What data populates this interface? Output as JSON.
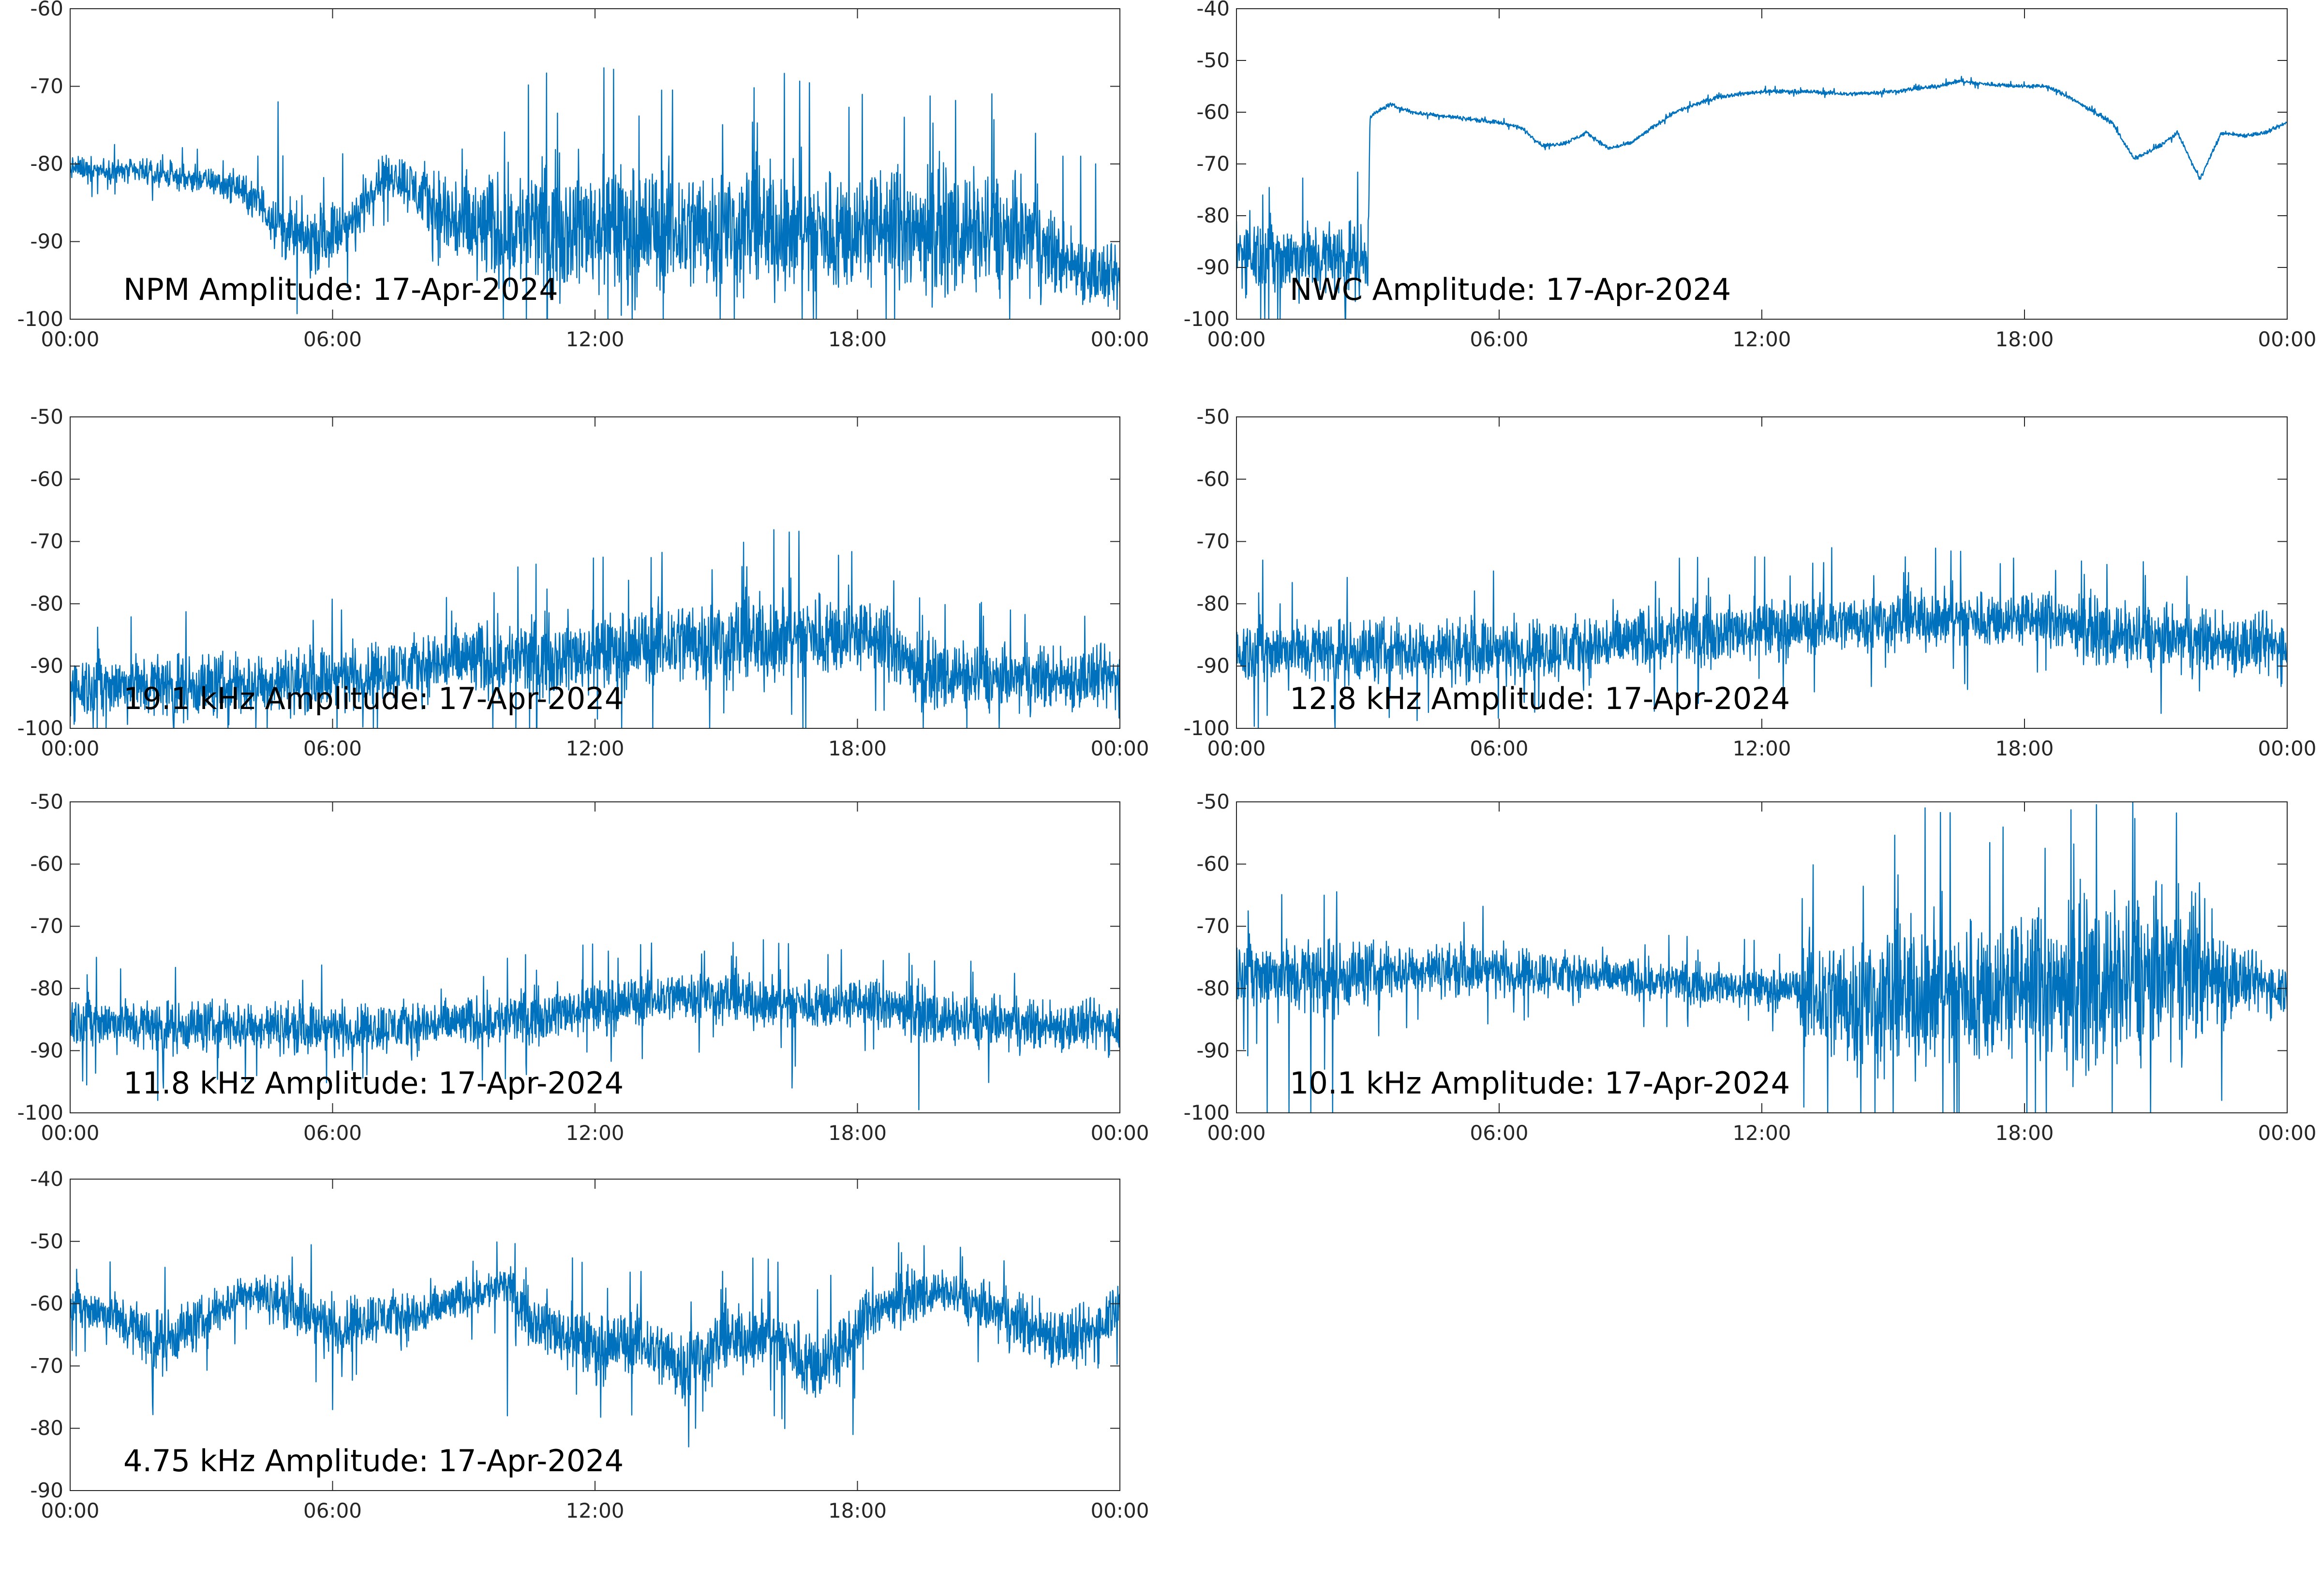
{
  "figure": {
    "line_color": "#0072BD",
    "axis_color": "#262626",
    "background": "#ffffff"
  },
  "chart_data": [
    {
      "type": "line",
      "title": "NPM Amplitude: 17-Apr-2024",
      "xlim": [
        "00:00",
        "24:00"
      ],
      "ylim": [
        -100,
        -60
      ],
      "x_ticks": [
        "00:00",
        "06:00",
        "12:00",
        "18:00",
        "00:00"
      ],
      "y_ticks": [
        -60,
        -70,
        -80,
        -90,
        -100
      ],
      "grid": false,
      "series": [
        {
          "x_hours": [
            0,
            1,
            2,
            3,
            3.8,
            4.5,
            5,
            5.5,
            6,
            6.5,
            7,
            7.5,
            8,
            8.5,
            9,
            10,
            11,
            12,
            13,
            14,
            15,
            16,
            17,
            18,
            19,
            20,
            21,
            22,
            22.5,
            23,
            23.5,
            24
          ],
          "center": [
            -80.5,
            -80.8,
            -81.3,
            -82,
            -83,
            -86,
            -89,
            -90,
            -89,
            -87.5,
            -82,
            -81.5,
            -84,
            -86.5,
            -88,
            -88.5,
            -88,
            -88,
            -88.5,
            -88.5,
            -88,
            -88.5,
            -89,
            -88.5,
            -88.5,
            -88.5,
            -89,
            -89.5,
            -92,
            -93,
            -94.5,
            -95
          ],
          "spread": [
            1.5,
            1.5,
            1.5,
            1.5,
            2,
            3,
            4,
            4,
            4,
            3.5,
            3,
            3,
            4,
            6,
            7,
            7,
            8,
            8,
            8,
            8,
            8,
            8,
            8,
            8,
            8,
            7.5,
            7.5,
            7,
            5,
            4.5,
            4,
            4
          ],
          "spikes": [
            [
              4.75,
              -72
            ],
            [
              22.7,
              -79
            ],
            [
              23.1,
              -79
            ],
            [
              23.45,
              -80
            ],
            [
              12.6,
              -99.5
            ],
            [
              9.3,
              -95
            ]
          ]
        }
      ]
    },
    {
      "type": "line",
      "title": "NWC Amplitude: 17-Apr-2024",
      "xlim": [
        "00:00",
        "24:00"
      ],
      "ylim": [
        -100,
        -40
      ],
      "x_ticks": [
        "00:00",
        "06:00",
        "12:00",
        "18:00",
        "00:00"
      ],
      "y_ticks": [
        -40,
        -50,
        -60,
        -70,
        -80,
        -90,
        -100
      ],
      "grid": false,
      "series": [
        {
          "x_hours": [
            0,
            0.5,
            1,
            2,
            3,
            3.05,
            3.2,
            3.5,
            4,
            5,
            6,
            6.5,
            7,
            7.5,
            8,
            8.5,
            9,
            10,
            11,
            12,
            13,
            14,
            15,
            16,
            16.5,
            17,
            18,
            18.5,
            19,
            20,
            20.5,
            21,
            21.5,
            22,
            22.5,
            23,
            23.5,
            24
          ],
          "center": [
            -87,
            -87,
            -88,
            -88,
            -88,
            -61,
            -60,
            -58.5,
            -60,
            -61,
            -62,
            -63,
            -66.5,
            -66,
            -64,
            -67,
            -66,
            -60,
            -57,
            -56,
            -56,
            -56.5,
            -56,
            -55,
            -54,
            -54.5,
            -55,
            -55,
            -57,
            -62,
            -69,
            -67,
            -64,
            -73,
            -64,
            -64.5,
            -64,
            -62
          ],
          "spread": [
            7,
            7,
            7,
            7,
            7,
            0.4,
            0.4,
            0.4,
            0.4,
            0.4,
            0.4,
            0.4,
            0.4,
            0.4,
            0.4,
            0.4,
            0.4,
            0.4,
            0.4,
            0.4,
            0.4,
            0.4,
            0.4,
            0.4,
            0.4,
            0.4,
            0.4,
            0.4,
            0.4,
            0.4,
            0.4,
            0.4,
            0.4,
            0.4,
            0.4,
            0.4,
            0.4,
            0.4
          ],
          "spikes": [
            [
              0.6,
              -76
            ],
            [
              0.3,
              -79
            ],
            [
              0.55,
              -100
            ],
            [
              1.0,
              -100
            ]
          ]
        }
      ]
    },
    {
      "type": "line",
      "title": "19.1 kHz Amplitude: 17-Apr-2024",
      "xlim": [
        "00:00",
        "24:00"
      ],
      "ylim": [
        -100,
        -50
      ],
      "x_ticks": [
        "00:00",
        "06:00",
        "12:00",
        "18:00",
        "00:00"
      ],
      "y_ticks": [
        -50,
        -60,
        -70,
        -80,
        -90,
        -100
      ],
      "grid": false,
      "series": [
        {
          "x_hours": [
            0,
            2,
            4,
            6,
            8,
            9,
            10,
            12,
            13,
            14,
            15,
            16,
            17,
            18,
            18.8,
            19.5,
            21,
            22,
            24
          ],
          "center": [
            -93,
            -93,
            -93,
            -92,
            -90,
            -89,
            -89,
            -88,
            -87,
            -86,
            -86,
            -86,
            -85,
            -85,
            -87,
            -91,
            -92,
            -92,
            -92
          ],
          "spread": [
            5,
            5,
            5,
            5,
            5,
            6,
            6,
            6,
            6,
            7,
            7,
            7,
            7,
            6,
            6,
            5,
            5,
            5,
            5
          ],
          "spikes": [
            [
              8.6,
              -79
            ],
            [
              6.2,
              -81
            ],
            [
              16.3,
              -78
            ],
            [
              17.8,
              -77
            ],
            [
              20.8,
              -80
            ],
            [
              21.5,
              -81
            ],
            [
              23.2,
              -82
            ],
            [
              19.5,
              -100
            ],
            [
              20.5,
              -100
            ],
            [
              10.5,
              -100
            ]
          ]
        }
      ]
    },
    {
      "type": "line",
      "title": "12.8 kHz Amplitude: 17-Apr-2024",
      "xlim": [
        "00:00",
        "24:00"
      ],
      "ylim": [
        -100,
        -50
      ],
      "x_ticks": [
        "00:00",
        "06:00",
        "12:00",
        "18:00",
        "00:00"
      ],
      "y_ticks": [
        -50,
        -60,
        -70,
        -80,
        -90,
        -100
      ],
      "grid": false,
      "series": [
        {
          "x_hours": [
            0,
            2,
            4,
            6,
            8,
            10,
            12,
            13.5,
            14,
            16,
            18,
            19,
            20,
            22,
            24
          ],
          "center": [
            -87.5,
            -87.5,
            -87.5,
            -87.5,
            -87,
            -85,
            -84,
            -83.5,
            -83,
            -82.5,
            -82.5,
            -83,
            -85,
            -86,
            -87
          ],
          "spread": [
            5,
            5,
            5,
            5,
            5,
            5,
            4.5,
            4.5,
            4.5,
            4.5,
            4.5,
            4.5,
            5,
            5,
            5
          ],
          "spikes": [
            [
              0.6,
              -73
            ],
            [
              13.6,
              -71
            ],
            [
              1.0,
              -80
            ],
            [
              0.5,
              -100
            ],
            [
              22.0,
              -94
            ]
          ]
        }
      ]
    },
    {
      "type": "line",
      "title": "11.8 kHz Amplitude: 17-Apr-2024",
      "xlim": [
        "00:00",
        "24:00"
      ],
      "ylim": [
        -100,
        -50
      ],
      "x_ticks": [
        "00:00",
        "06:00",
        "12:00",
        "18:00",
        "00:00"
      ],
      "y_ticks": [
        -50,
        -60,
        -70,
        -80,
        -90,
        -100
      ],
      "grid": false,
      "series": [
        {
          "x_hours": [
            0,
            2,
            4,
            6,
            8,
            10,
            12,
            14,
            14.5,
            16,
            18,
            19,
            20,
            22,
            24
          ],
          "center": [
            -85,
            -86,
            -86,
            -86.5,
            -86,
            -85,
            -83,
            -81,
            -81,
            -82.5,
            -82.5,
            -83,
            -85,
            -86,
            -86
          ],
          "spread": [
            4,
            4,
            4,
            4,
            4,
            4,
            4,
            4,
            4,
            4,
            4,
            4,
            4,
            4,
            4
          ],
          "spikes": [
            [
              0.6,
              -75
            ],
            [
              2.0,
              -98
            ],
            [
              19.4,
              -99.5
            ],
            [
              16.5,
              -96
            ],
            [
              12.3,
              -74
            ],
            [
              14.5,
              -74
            ]
          ]
        }
      ]
    },
    {
      "type": "line",
      "title": "10.1 kHz Amplitude: 17-Apr-2024",
      "xlim": [
        "00:00",
        "24:00"
      ],
      "ylim": [
        -100,
        -50
      ],
      "x_ticks": [
        "00:00",
        "06:00",
        "12:00",
        "18:00",
        "00:00"
      ],
      "y_ticks": [
        -50,
        -60,
        -70,
        -80,
        -90,
        -100
      ],
      "grid": false,
      "series": [
        {
          "x_hours": [
            0,
            1,
            2,
            3,
            4,
            6,
            8,
            10,
            12,
            12.8,
            13,
            14,
            16,
            18,
            20,
            21,
            22,
            23,
            24
          ],
          "center": [
            -77,
            -78,
            -78,
            -77.5,
            -77,
            -77,
            -78,
            -79,
            -80,
            -80,
            -81,
            -82,
            -81,
            -80,
            -79,
            -78,
            -77,
            -79,
            -80
          ],
          "spread": [
            5,
            6,
            6,
            5,
            4,
            4,
            3.5,
            3,
            3,
            3,
            9,
            11,
            12,
            12,
            13,
            13,
            12,
            5,
            4
          ],
          "spikes": [
            [
              0.7,
              -100
            ],
            [
              1.2,
              -100
            ],
            [
              1.7,
              -100
            ],
            [
              2.2,
              -100
            ],
            [
              2.0,
              -65
            ],
            [
              13.5,
              -100
            ],
            [
              15.0,
              -100
            ],
            [
              16.5,
              -100
            ],
            [
              18.5,
              -100
            ],
            [
              20.0,
              -100
            ],
            [
              21.0,
              -63
            ],
            [
              22.0,
              -63
            ],
            [
              22.5,
              -98
            ]
          ]
        }
      ]
    },
    {
      "type": "line",
      "title": "4.75 kHz Amplitude: 17-Apr-2024",
      "xlim": [
        "00:00",
        "24:00"
      ],
      "ylim": [
        -90,
        -40
      ],
      "x_ticks": [
        "00:00",
        "06:00",
        "12:00",
        "18:00",
        "00:00"
      ],
      "y_ticks": [
        -40,
        -50,
        -60,
        -70,
        -80,
        -90
      ],
      "grid": false,
      "series": [
        {
          "x_hours": [
            0,
            1,
            2,
            3,
            4,
            5,
            6,
            7,
            8,
            9,
            10,
            10.5,
            11,
            12,
            13,
            14,
            15,
            16,
            17,
            17.8,
            18.2,
            19,
            20,
            21,
            22,
            23,
            23.5,
            24
          ],
          "center": [
            -60,
            -62,
            -66,
            -63,
            -58,
            -60,
            -64,
            -62,
            -62,
            -59,
            -57,
            -62,
            -64,
            -67,
            -66,
            -70,
            -66,
            -65,
            -70,
            -67,
            -62,
            -59,
            -58,
            -61,
            -64,
            -66,
            -64,
            -59
          ],
          "spread": [
            3,
            4,
            5,
            4,
            3,
            4,
            5,
            4,
            4,
            3,
            3,
            4,
            5,
            5,
            5,
            6,
            5,
            5,
            6,
            6,
            4,
            4,
            3,
            4,
            5,
            5,
            5,
            4
          ],
          "spikes": [
            [
              14.3,
              -80
            ],
            [
              17.9,
              -81
            ],
            [
              16.1,
              -78
            ],
            [
              10.0,
              -78
            ],
            [
              6.0,
              -77
            ]
          ]
        }
      ]
    }
  ]
}
